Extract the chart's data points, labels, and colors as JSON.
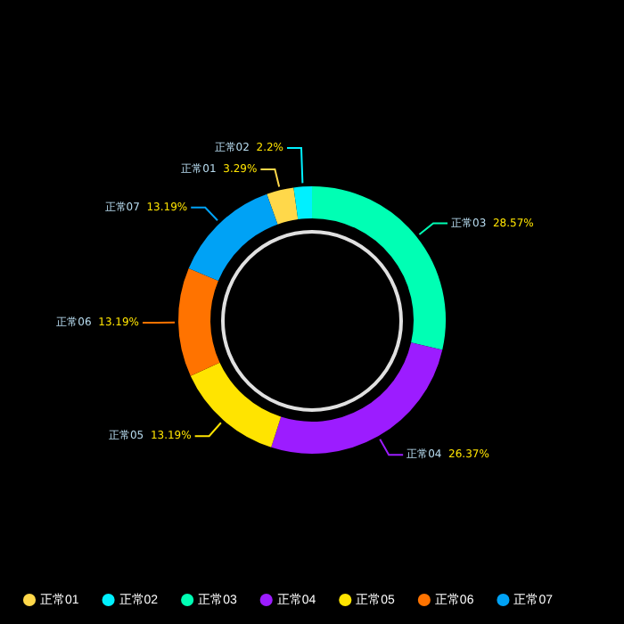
{
  "chart_data": {
    "type": "donut",
    "categories": [
      "正常01",
      "正常02",
      "正常03",
      "正常04",
      "正常05",
      "正常06",
      "正常07"
    ],
    "values": [
      3.29,
      2.2,
      28.57,
      26.37,
      13.19,
      13.19,
      13.19
    ],
    "value_labels": [
      "3.29%",
      "2.2%",
      "28.57%",
      "26.37%",
      "13.19%",
      "13.19%",
      "13.19%"
    ],
    "colors": [
      "#ffd84a",
      "#00f0ff",
      "#00ffb4",
      "#9c1cff",
      "#ffe400",
      "#ff7300",
      "#00a2f5"
    ],
    "legend": "bottom"
  }
}
